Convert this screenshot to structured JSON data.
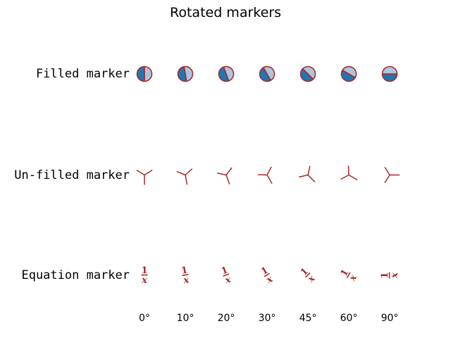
{
  "figure": {
    "background": "#ffffff"
  },
  "chart_data": {
    "type": "scatter",
    "title": "Rotated markers",
    "grid": false,
    "axes_visible": false,
    "legend": null,
    "angles_deg": [
      0,
      10,
      20,
      30,
      45,
      60,
      90
    ],
    "x_tick_labels": [
      "0°",
      "10°",
      "20°",
      "30°",
      "45°",
      "60°",
      "90°"
    ],
    "rotation_direction": "counterclockwise",
    "rows": [
      {
        "label": "Filled marker",
        "marker": "circle-half-filled-left"
      },
      {
        "label": "Un-filled marker",
        "marker": "tri-down"
      },
      {
        "label": "Equation marker",
        "marker": "text-equation",
        "equation_numerator": "1",
        "equation_denominator": "x"
      }
    ],
    "colors": {
      "marker_face": "#1f77b4",
      "marker_face_alt": "#b0c4de",
      "marker_edge": "#a52a2a",
      "text": "#000000"
    }
  }
}
